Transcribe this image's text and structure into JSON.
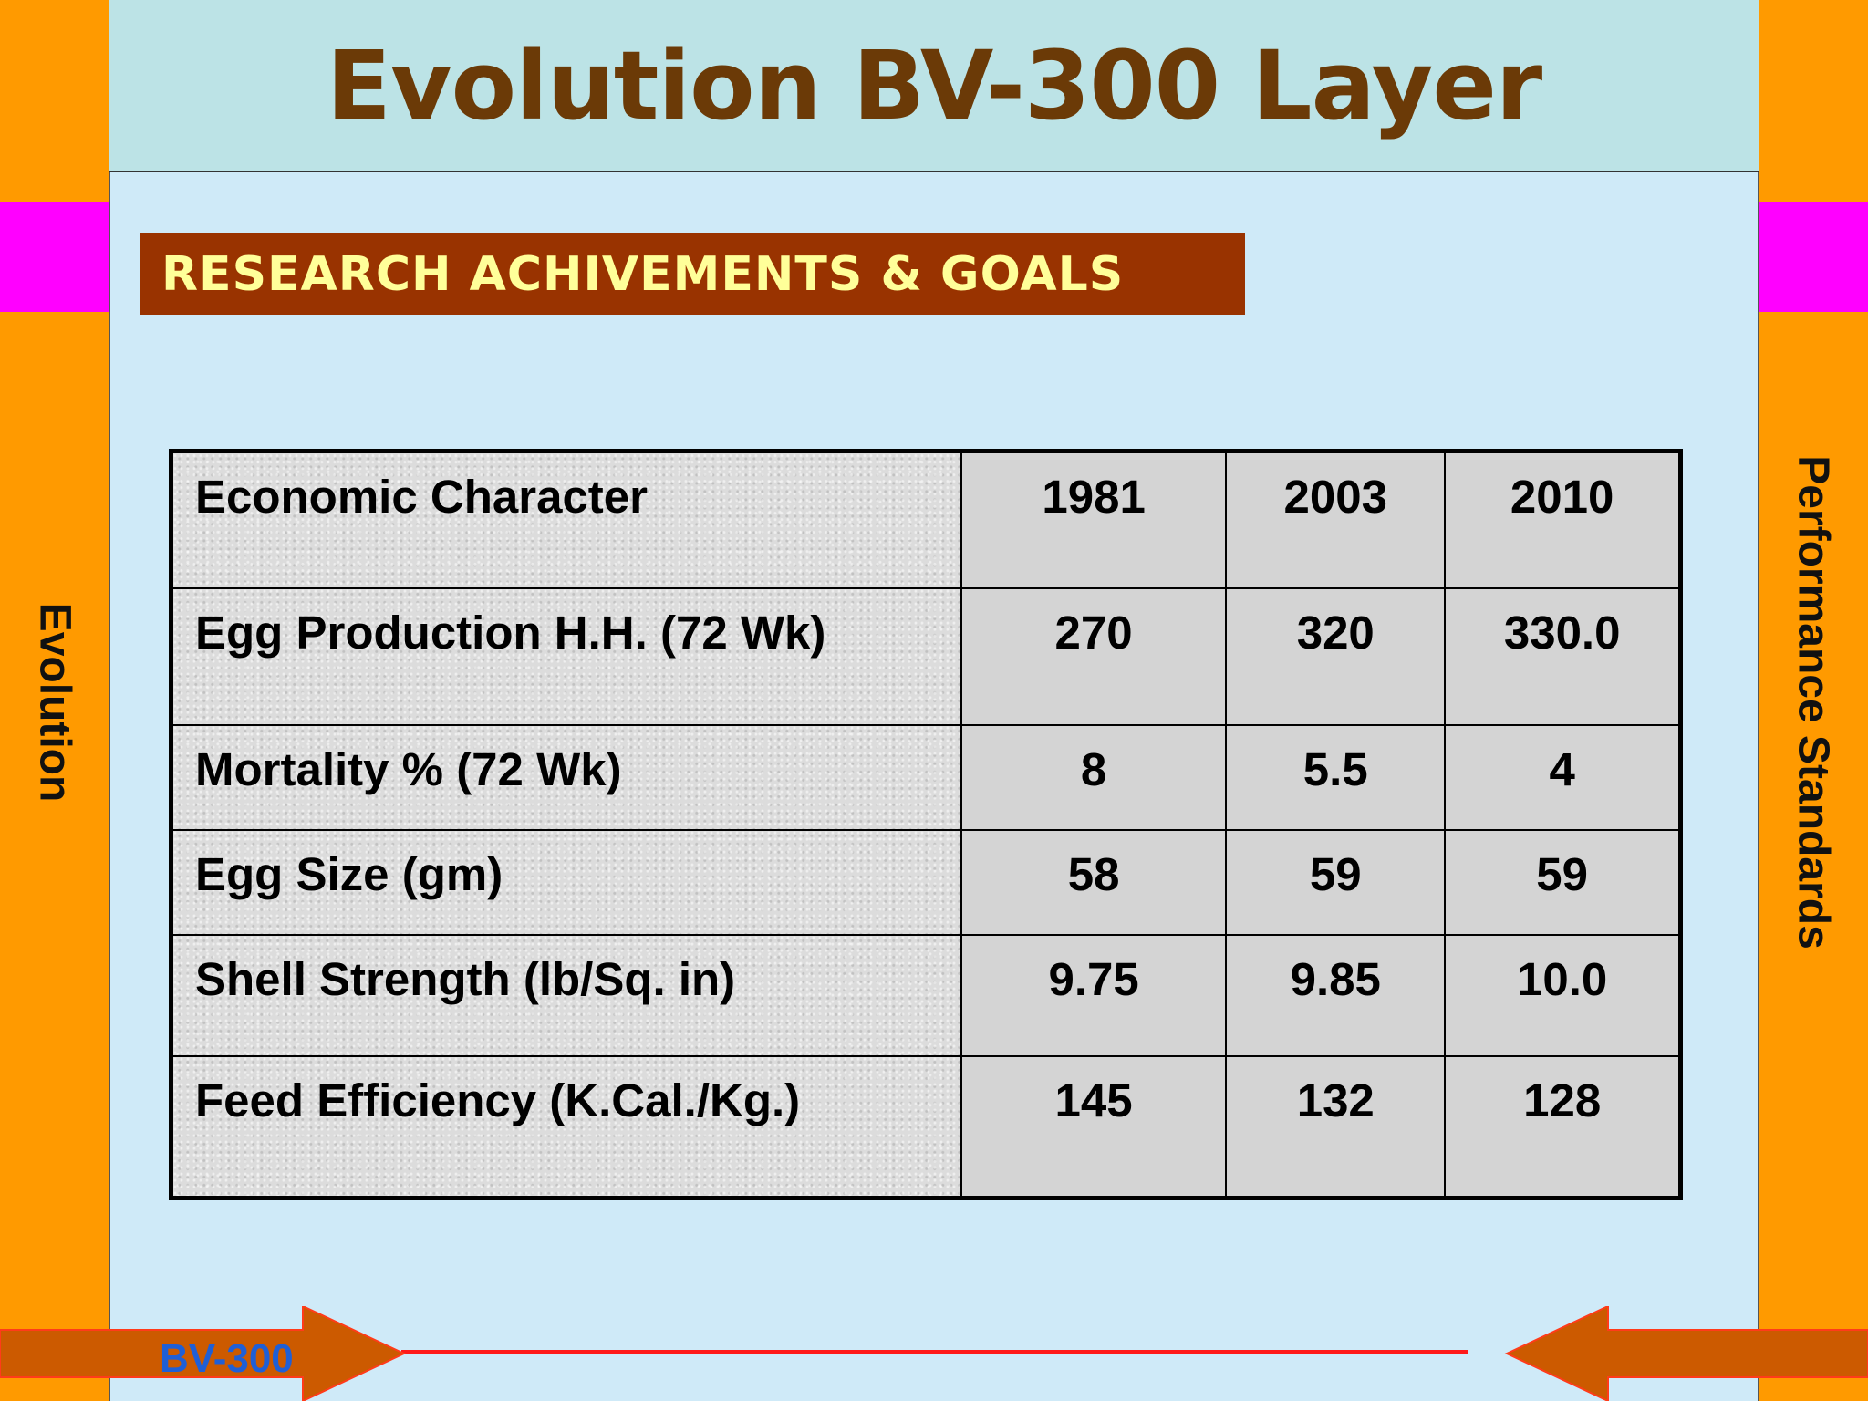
{
  "header": {
    "title": "Evolution BV-300 Layer"
  },
  "section": {
    "banner": "RESEARCH ACHIVEMENTS & GOALS"
  },
  "side": {
    "left_label": "Evolution",
    "right_label": "Performance Standards"
  },
  "table": {
    "header": [
      "Economic Character",
      "1981",
      "2003",
      "2010"
    ],
    "rows": [
      [
        "Egg Production H.H. (72 Wk)",
        "270",
        "320",
        "330.0"
      ],
      [
        "Mortality % (72 Wk)",
        "8",
        "5.5",
        "4"
      ],
      [
        "Egg Size (gm)",
        "58",
        "59",
        "59"
      ],
      [
        "Shell Strength (lb/Sq. in)",
        "9.75",
        "9.85",
        "10.0"
      ],
      [
        "Feed Efficiency (K.Cal./Kg.)",
        "145",
        "132",
        "128"
      ]
    ]
  },
  "footer": {
    "label": "BV-300"
  },
  "colors": {
    "side_bar": "#ff9a00",
    "accent_band": "#ff00ff",
    "title": "#6b3a07",
    "banner_bg": "#993300",
    "banner_text": "#ffff99",
    "arrow": "#cc5a00",
    "line": "#ff1a1a",
    "footer_text": "#1f5fd6"
  }
}
